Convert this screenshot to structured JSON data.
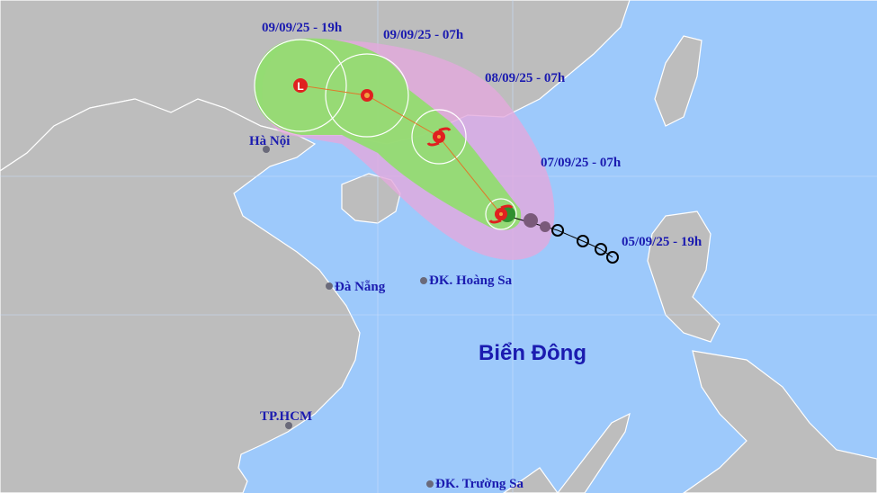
{
  "map": {
    "colors": {
      "sea": "#9dc9fb",
      "land": "#bdbdbd",
      "border": "#ffffff",
      "risk_zone": "#e3a9dd",
      "wind_zone": "#8fdf6a",
      "track_line": "#e0782a",
      "storm_icon": "#e02020",
      "past_track": "#000000",
      "past_storm_icon": "#7a5a7a",
      "label": "#1b1bb0"
    },
    "forecast_labels": [
      {
        "text": "09/09/25 - 19h"
      },
      {
        "text": "09/09/25 - 07h"
      },
      {
        "text": "08/09/25 - 07h"
      },
      {
        "text": "07/09/25 - 07h"
      },
      {
        "text": "05/09/25 - 19h"
      }
    ],
    "places": [
      {
        "name": "Hà Nội"
      },
      {
        "name": "Đà Nẵng"
      },
      {
        "name": "ĐK. Hoàng Sa"
      },
      {
        "name": "TP.HCM"
      },
      {
        "name": "ĐK. Trường Sa"
      }
    ],
    "sea_name": "Biển Đông",
    "track_icons": [
      "low-pressure-L-icon",
      "tropical-depression-icon",
      "typhoon-icon",
      "typhoon-icon",
      "past-typhoon-icon",
      "past-position-circle-icon"
    ],
    "low_label": "L"
  }
}
